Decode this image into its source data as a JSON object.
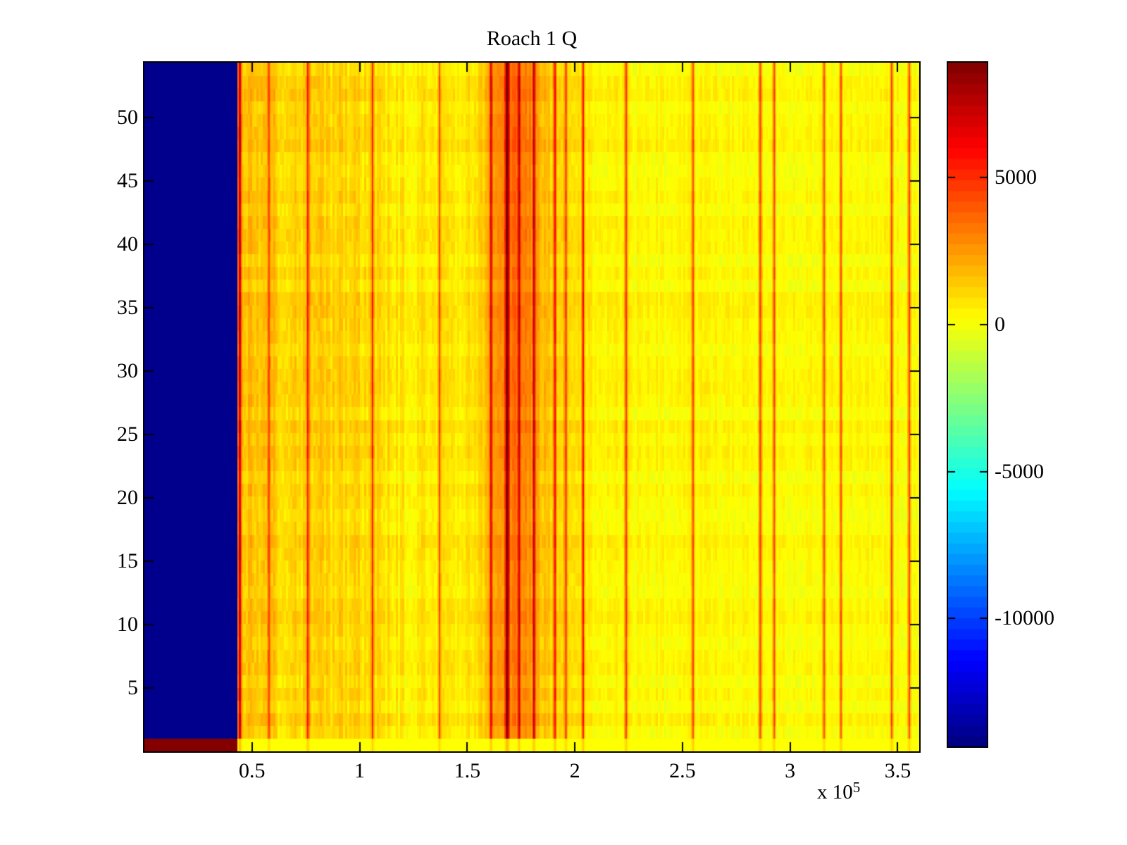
{
  "figure": {
    "background": "#ffffff",
    "text_color": "#000000"
  },
  "chart_data": {
    "type": "heatmap",
    "title": "Roach 1 Q",
    "colormap": "jet",
    "color_levels": 64,
    "clim": [
      -14350,
      8900
    ],
    "x_axis": {
      "min": 0,
      "max": 3.6,
      "scale_note": "values in units of 1e5",
      "tick_values": [
        0.5,
        1,
        1.5,
        2,
        2.5,
        3,
        3.5
      ],
      "tick_labels": [
        "0.5",
        "1",
        "1.5",
        "2",
        "2.5",
        "3",
        "3.5"
      ],
      "exponent_prefix": "x 10",
      "exponent": "5"
    },
    "y_axis": {
      "min": 0,
      "max": 54.33,
      "rows": 54,
      "tick_values": [
        5,
        10,
        15,
        20,
        25,
        30,
        35,
        40,
        45,
        50
      ],
      "tick_labels": [
        "5",
        "10",
        "15",
        "20",
        "25",
        "30",
        "35",
        "40",
        "45",
        "50"
      ]
    },
    "colorbar": {
      "tick_values": [
        5000,
        0,
        -5000,
        -10000
      ],
      "tick_labels": [
        "5000",
        "0",
        "-5000",
        "-10000"
      ]
    },
    "features": {
      "blue_block": {
        "x_end": 0.43,
        "value": -14050
      },
      "bottom_row": {
        "left_value": 8800,
        "right_value": 150,
        "line_bleed": 0.25
      },
      "base_profile": [
        [
          0.43,
          1900
        ],
        [
          0.55,
          1400
        ],
        [
          0.75,
          1300
        ],
        [
          0.95,
          1100
        ],
        [
          1.15,
          700
        ],
        [
          1.35,
          600
        ],
        [
          1.5,
          700
        ],
        [
          1.58,
          1400
        ],
        [
          1.63,
          2500
        ],
        [
          1.68,
          3200
        ],
        [
          1.72,
          3300
        ],
        [
          1.78,
          2800
        ],
        [
          1.83,
          1900
        ],
        [
          1.9,
          1300
        ],
        [
          2.0,
          900
        ],
        [
          2.1,
          500
        ],
        [
          2.3,
          300
        ],
        [
          2.7,
          250
        ],
        [
          3.1,
          220
        ],
        [
          3.6,
          250
        ]
      ],
      "stripe_amplitude_profile": [
        [
          0.43,
          950
        ],
        [
          1.1,
          850
        ],
        [
          1.5,
          700
        ],
        [
          1.65,
          700
        ],
        [
          1.85,
          800
        ],
        [
          2.1,
          620
        ],
        [
          2.5,
          560
        ],
        [
          3.6,
          560
        ]
      ],
      "red_lines": [
        [
          0.445,
          5500,
          3
        ],
        [
          0.58,
          3200,
          2
        ],
        [
          0.76,
          4200,
          2
        ],
        [
          1.06,
          4200,
          2
        ],
        [
          1.37,
          3800,
          2
        ],
        [
          1.61,
          4500,
          2
        ],
        [
          1.687,
          5600,
          4
        ],
        [
          1.74,
          4300,
          2
        ],
        [
          1.81,
          4800,
          2
        ],
        [
          1.908,
          4600,
          2
        ],
        [
          1.96,
          3000,
          3
        ],
        [
          2.04,
          4800,
          2
        ],
        [
          2.237,
          4200,
          2
        ],
        [
          2.549,
          4300,
          2
        ],
        [
          2.862,
          3800,
          2
        ],
        [
          2.925,
          4000,
          2
        ],
        [
          3.158,
          3800,
          2
        ],
        [
          3.237,
          4000,
          2
        ],
        [
          3.471,
          4200,
          2
        ],
        [
          3.553,
          4000,
          2
        ]
      ],
      "band_row_boost": 700,
      "row_jitter": 260,
      "noise_seed": 7
    }
  }
}
